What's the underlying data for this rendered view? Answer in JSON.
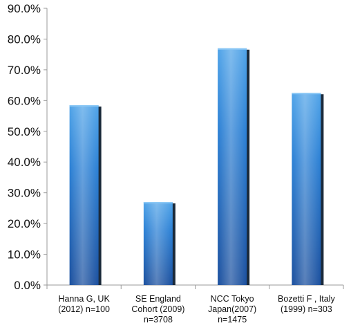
{
  "chart_data": {
    "type": "bar",
    "title": "",
    "xlabel": "",
    "ylabel": "",
    "categories": [
      [
        "Hanna G, UK",
        "(2012) n=100"
      ],
      [
        "SE England",
        "Cohort (2009)",
        "n=3708"
      ],
      [
        "NCC Tokyo",
        "Japan(2007)",
        "n=1475"
      ],
      [
        "Bozetti F , Italy",
        "(1999) n=303"
      ]
    ],
    "series": [
      {
        "values": [
          58.5,
          27.0,
          77.0,
          62.5
        ]
      }
    ],
    "ylim": [
      0,
      90
    ],
    "yticks": [
      0,
      10,
      20,
      30,
      40,
      50,
      60,
      70,
      80,
      90
    ],
    "ytick_labels": [
      "0.0%",
      "10.0%",
      "20.0%",
      "30.0%",
      "40.0%",
      "50.0%",
      "60.0%",
      "70.0%",
      "80.0%",
      "90.0%"
    ],
    "grid": false,
    "legend": "none",
    "colors": {
      "bar_top": "#4fa3e8",
      "bar_mid": "#2a7fd4",
      "bar_bottom": "#1a4f9e",
      "bar_shadow": "#1b2a3a",
      "axis": "#999999"
    }
  }
}
